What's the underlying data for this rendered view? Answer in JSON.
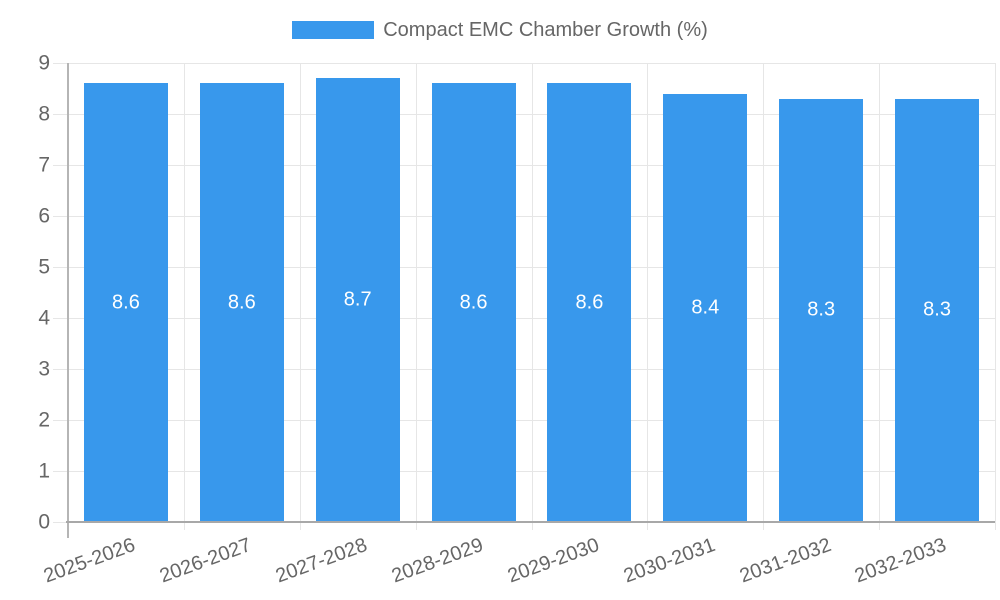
{
  "legend": {
    "label": "Compact EMC Chamber Growth (%)"
  },
  "chart_data": {
    "type": "bar",
    "title": "Compact EMC Chamber Growth (%)",
    "categories": [
      "2025-2026",
      "2026-2027",
      "2027-2028",
      "2028-2029",
      "2029-2030",
      "2030-2031",
      "2031-2032",
      "2032-2033"
    ],
    "values": [
      8.6,
      8.6,
      8.7,
      8.6,
      8.6,
      8.4,
      8.3,
      8.3
    ],
    "bar_value_labels": [
      "8.6",
      "8.6",
      "8.7",
      "8.6",
      "8.6",
      "8.4",
      "8.3",
      "8.3"
    ],
    "xlabel": "",
    "ylabel": "",
    "ylim": [
      0,
      9
    ],
    "y_ticks": [
      0,
      1,
      2,
      3,
      4,
      5,
      6,
      7,
      8,
      9
    ],
    "grid": true,
    "legend_position": "top-center",
    "x_label_rotation_deg": -20,
    "colors": {
      "bar": "#3898ec",
      "bar_value_label": "#ffffff",
      "axis_text": "#666666",
      "grid_line": "#e6e6e6",
      "y_axis_line": "#b5b5b5",
      "x_axis_line": "#a8a8a8"
    }
  }
}
